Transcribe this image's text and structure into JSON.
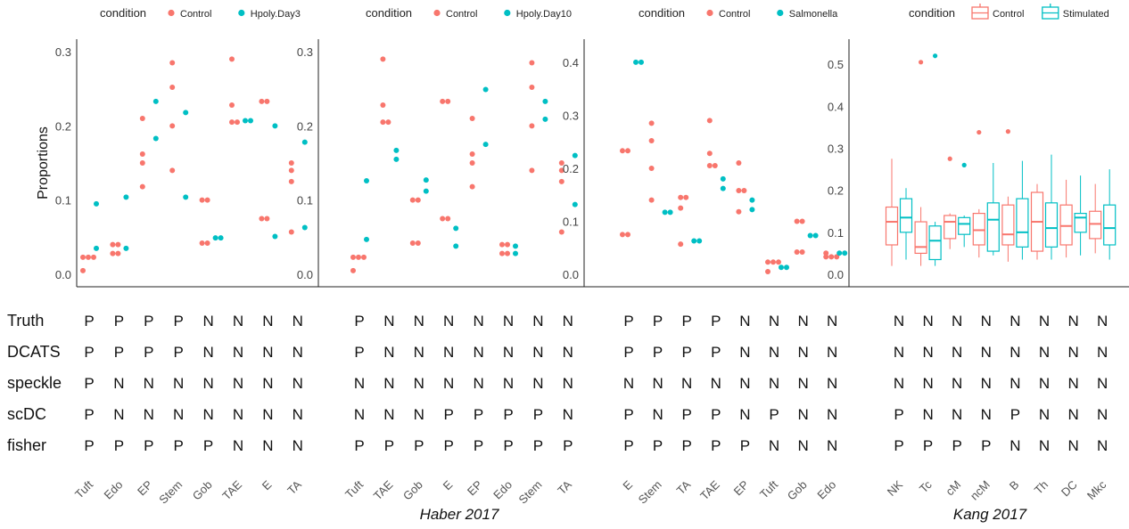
{
  "colors": {
    "control": "#F8766D",
    "treat": "#00BFC4"
  },
  "y_label": "Proportions",
  "row_labels": [
    "Truth",
    "DCATS",
    "speckle",
    "scDC",
    "fisher"
  ],
  "captions": [
    "Haber 2017",
    "Kang 2017"
  ],
  "chart_data": [
    {
      "type": "scatter",
      "legend_title": "condition",
      "legend": [
        "Control",
        "Hpoly.Day3"
      ],
      "categories": [
        "Tuft",
        "Edo",
        "EP",
        "Stem",
        "Gob",
        "TAE",
        "E",
        "TA"
      ],
      "ylim": [
        0,
        0.3
      ],
      "yticks": [
        "0.0",
        "0.1",
        "0.2",
        "0.3"
      ],
      "control": [
        [
          0.023,
          0.023,
          0.023,
          0.005
        ],
        [
          0.04,
          0.04,
          0.028,
          0.028
        ],
        [
          0.21,
          0.162,
          0.15,
          0.118
        ],
        [
          0.285,
          0.252,
          0.2,
          0.14
        ],
        [
          0.1,
          0.1,
          0.042,
          0.042
        ],
        [
          0.29,
          0.228,
          0.205,
          0.205
        ],
        [
          0.233,
          0.233,
          0.075,
          0.075
        ],
        [
          0.15,
          0.14,
          0.125,
          0.057
        ]
      ],
      "treat": [
        [
          0.095,
          0.035
        ],
        [
          0.104,
          0.035
        ],
        [
          0.233,
          0.183
        ],
        [
          0.218,
          0.104
        ],
        [
          0.049,
          0.049
        ],
        [
          0.207,
          0.207
        ],
        [
          0.2,
          0.051
        ],
        [
          0.178,
          0.063
        ]
      ],
      "rows": {
        "Truth": [
          "P",
          "P",
          "P",
          "P",
          "N",
          "N",
          "N",
          "N"
        ],
        "DCATS": [
          "P",
          "P",
          "P",
          "P",
          "N",
          "N",
          "N",
          "N"
        ],
        "speckle": [
          "P",
          "N",
          "N",
          "N",
          "N",
          "N",
          "N",
          "N"
        ],
        "scDC": [
          "P",
          "N",
          "N",
          "N",
          "N",
          "N",
          "N",
          "N"
        ],
        "fisher": [
          "P",
          "P",
          "P",
          "P",
          "P",
          "N",
          "N",
          "N"
        ]
      }
    },
    {
      "type": "scatter",
      "legend_title": "condition",
      "legend": [
        "Control",
        "Hpoly.Day10"
      ],
      "categories": [
        "Tuft",
        "TAE",
        "Gob",
        "E",
        "EP",
        "Edo",
        "Stem",
        "TA"
      ],
      "ylim": [
        0,
        0.3
      ],
      "yticks": [
        "0.0",
        "0.1",
        "0.2",
        "0.3"
      ],
      "control": [
        [
          0.023,
          0.023,
          0.023,
          0.005
        ],
        [
          0.29,
          0.228,
          0.205,
          0.205
        ],
        [
          0.1,
          0.1,
          0.042,
          0.042
        ],
        [
          0.233,
          0.233,
          0.075,
          0.075
        ],
        [
          0.21,
          0.162,
          0.15,
          0.118
        ],
        [
          0.04,
          0.04,
          0.028,
          0.028
        ],
        [
          0.285,
          0.252,
          0.2,
          0.14
        ],
        [
          0.15,
          0.14,
          0.125,
          0.057
        ]
      ],
      "treat": [
        [
          0.126,
          0.047
        ],
        [
          0.167,
          0.155
        ],
        [
          0.127,
          0.112
        ],
        [
          0.062,
          0.038
        ],
        [
          0.249,
          0.175
        ],
        [
          0.038,
          0.028
        ],
        [
          0.233,
          0.209
        ],
        [
          0.16,
          0.094
        ]
      ],
      "rows": {
        "Truth": [
          "P",
          "N",
          "N",
          "N",
          "N",
          "N",
          "N",
          "N"
        ],
        "DCATS": [
          "P",
          "N",
          "N",
          "N",
          "N",
          "N",
          "N",
          "N"
        ],
        "speckle": [
          "N",
          "N",
          "N",
          "N",
          "N",
          "N",
          "N",
          "N"
        ],
        "scDC": [
          "N",
          "N",
          "N",
          "P",
          "P",
          "P",
          "P",
          "N"
        ],
        "fisher": [
          "P",
          "P",
          "P",
          "P",
          "P",
          "P",
          "P",
          "P"
        ]
      }
    },
    {
      "type": "scatter",
      "legend_title": "condition",
      "legend": [
        "Control",
        "Salmonella"
      ],
      "categories": [
        "E",
        "Stem",
        "TA",
        "TAE",
        "EP",
        "Tuft",
        "Gob",
        "Edo"
      ],
      "ylim": [
        0,
        0.42
      ],
      "yticks": [
        "0.0",
        "0.1",
        "0.2",
        "0.3",
        "0.4"
      ],
      "control": [
        [
          0.233,
          0.233,
          0.075,
          0.075
        ],
        [
          0.285,
          0.252,
          0.2,
          0.14
        ],
        [
          0.145,
          0.145,
          0.125,
          0.057
        ],
        [
          0.29,
          0.228,
          0.205,
          0.205
        ],
        [
          0.21,
          0.158,
          0.158,
          0.118
        ],
        [
          0.023,
          0.023,
          0.023,
          0.005
        ],
        [
          0.1,
          0.1,
          0.042,
          0.042
        ],
        [
          0.04,
          0.033,
          0.033,
          0.033
        ]
      ],
      "treat": [
        [
          0.4,
          0.4
        ],
        [
          0.117,
          0.117
        ],
        [
          0.063,
          0.063
        ],
        [
          0.18,
          0.162
        ],
        [
          0.14,
          0.122
        ],
        [
          0.013,
          0.013
        ],
        [
          0.073,
          0.073
        ],
        [
          0.04,
          0.04
        ]
      ],
      "rows": {
        "Truth": [
          "P",
          "P",
          "P",
          "P",
          "N",
          "N",
          "N",
          "N"
        ],
        "DCATS": [
          "P",
          "P",
          "P",
          "P",
          "N",
          "N",
          "N",
          "N"
        ],
        "speckle": [
          "N",
          "N",
          "N",
          "N",
          "N",
          "N",
          "N",
          "N"
        ],
        "scDC": [
          "P",
          "N",
          "P",
          "P",
          "N",
          "P",
          "N",
          "N"
        ],
        "fisher": [
          "P",
          "P",
          "P",
          "P",
          "P",
          "N",
          "N",
          "N"
        ]
      }
    },
    {
      "type": "box",
      "legend_title": "condition",
      "legend": [
        "Control",
        "Stimulated"
      ],
      "categories": [
        "NK",
        "Tc",
        "cM",
        "ncM",
        "B",
        "Th",
        "DC",
        "Mkc"
      ],
      "ylim": [
        0,
        0.53
      ],
      "yticks": [
        "0.0",
        "0.1",
        "0.2",
        "0.3",
        "0.4",
        "0.5"
      ],
      "control": [
        {
          "min": 0.02,
          "q1": 0.07,
          "med": 0.125,
          "q3": 0.16,
          "max": 0.275
        },
        {
          "min": 0.02,
          "q1": 0.05,
          "med": 0.065,
          "q3": 0.125,
          "max": 0.16,
          "out": [
            0.505
          ]
        },
        {
          "min": 0.06,
          "q1": 0.085,
          "med": 0.125,
          "q3": 0.14,
          "max": 0.145,
          "out": [
            0.275
          ]
        },
        {
          "min": 0.04,
          "q1": 0.07,
          "med": 0.105,
          "q3": 0.145,
          "max": 0.155,
          "out": [
            0.338
          ]
        },
        {
          "min": 0.03,
          "q1": 0.07,
          "med": 0.095,
          "q3": 0.165,
          "max": 0.185,
          "out": [
            0.34
          ]
        },
        {
          "min": 0.035,
          "q1": 0.055,
          "med": 0.125,
          "q3": 0.195,
          "max": 0.215
        },
        {
          "min": 0.04,
          "q1": 0.07,
          "med": 0.115,
          "q3": 0.165,
          "max": 0.225
        },
        {
          "min": 0.05,
          "q1": 0.085,
          "med": 0.12,
          "q3": 0.15,
          "max": 0.215
        }
      ],
      "treat": [
        {
          "min": 0.035,
          "q1": 0.1,
          "med": 0.135,
          "q3": 0.18,
          "max": 0.205
        },
        {
          "min": 0.02,
          "q1": 0.035,
          "med": 0.08,
          "q3": 0.115,
          "max": 0.125,
          "out": [
            0.52
          ]
        },
        {
          "min": 0.065,
          "q1": 0.095,
          "med": 0.12,
          "q3": 0.135,
          "max": 0.14,
          "out": [
            0.26
          ]
        },
        {
          "min": 0.045,
          "q1": 0.055,
          "med": 0.13,
          "q3": 0.17,
          "max": 0.265
        },
        {
          "min": 0.035,
          "q1": 0.065,
          "med": 0.1,
          "q3": 0.18,
          "max": 0.27
        },
        {
          "min": 0.035,
          "q1": 0.065,
          "med": 0.11,
          "q3": 0.17,
          "max": 0.285
        },
        {
          "min": 0.045,
          "q1": 0.1,
          "med": 0.135,
          "q3": 0.145,
          "max": 0.235
        },
        {
          "min": 0.035,
          "q1": 0.07,
          "med": 0.11,
          "q3": 0.165,
          "max": 0.25
        }
      ],
      "rows": {
        "Truth": [
          "N",
          "N",
          "N",
          "N",
          "N",
          "N",
          "N",
          "N"
        ],
        "DCATS": [
          "N",
          "N",
          "N",
          "N",
          "N",
          "N",
          "N",
          "N"
        ],
        "speckle": [
          "N",
          "N",
          "N",
          "N",
          "N",
          "N",
          "N",
          "N"
        ],
        "scDC": [
          "P",
          "N",
          "N",
          "N",
          "P",
          "N",
          "N",
          "N"
        ],
        "fisher": [
          "P",
          "P",
          "P",
          "P",
          "N",
          "N",
          "N",
          "N"
        ]
      }
    }
  ]
}
